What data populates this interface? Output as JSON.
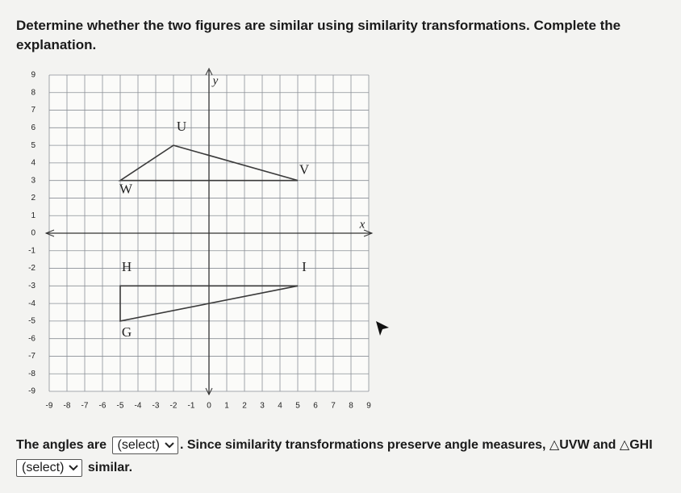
{
  "question": "Determine whether the two figures are similar using similarity transformations. Complete the explanation.",
  "graph": {
    "x_label": "x",
    "y_label": "y",
    "xlim": [
      -9,
      9
    ],
    "ylim": [
      -9,
      9
    ],
    "xticks": [
      -9,
      -8,
      -7,
      -6,
      -5,
      -4,
      -3,
      -2,
      -1,
      0,
      1,
      2,
      3,
      4,
      5,
      6,
      7,
      8,
      9
    ],
    "yticks": [
      -9,
      -8,
      -7,
      -6,
      -5,
      -4,
      -3,
      -2,
      -1,
      0,
      1,
      2,
      3,
      4,
      5,
      6,
      7,
      8,
      9
    ],
    "triangles": [
      {
        "vertices": [
          {
            "label": "U",
            "x": -2,
            "y": 5
          },
          {
            "label": "V",
            "x": 5,
            "y": 3
          },
          {
            "label": "W",
            "x": -5,
            "y": 3
          }
        ]
      },
      {
        "vertices": [
          {
            "label": "G",
            "x": -5,
            "y": -5
          },
          {
            "label": "H",
            "x": -5,
            "y": -3
          },
          {
            "label": "I",
            "x": 5,
            "y": -3
          }
        ]
      }
    ]
  },
  "answer": {
    "line1_before": "The angles are",
    "select1": "(select)",
    "line1_after": ". Since similarity transformations preserve angle measures, △UVW and △GHI",
    "select2": "(select)",
    "line2_after": "similar."
  }
}
